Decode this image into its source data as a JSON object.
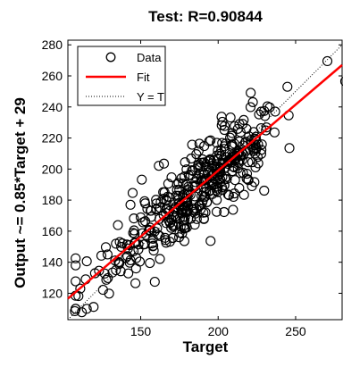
{
  "colors": {
    "data": "#000000",
    "fit": "#ff0000",
    "identity": "#000000",
    "axes": "#000000"
  },
  "chart_data": {
    "type": "scatter",
    "title": "Test: R=0.90844",
    "xlabel": "Target",
    "ylabel": "Output ~= 0.85*Target + 29",
    "xlim": [
      103,
      280
    ],
    "ylim": [
      103,
      283
    ],
    "xticks": [
      150,
      200,
      250
    ],
    "yticks": [
      120,
      140,
      160,
      180,
      200,
      220,
      240,
      260,
      280
    ],
    "grid": false,
    "legend": {
      "placement": "top-left",
      "entries": [
        "Data",
        "Fit",
        "Y = T"
      ]
    },
    "fit": {
      "slope": 0.85,
      "intercept": 29
    },
    "series": [
      {
        "name": "Data",
        "marker": "open-circle",
        "color": "#000000",
        "points": []
      },
      {
        "name": "Fit",
        "style": "solid-line",
        "color": "#ff0000",
        "x": [
          103,
          280
        ],
        "y": [
          116.55,
          267.0
        ]
      },
      {
        "name": "Y = T",
        "style": "dotted-line",
        "color": "#000000",
        "x": [
          103,
          280
        ],
        "y": [
          103,
          280
        ]
      }
    ]
  }
}
